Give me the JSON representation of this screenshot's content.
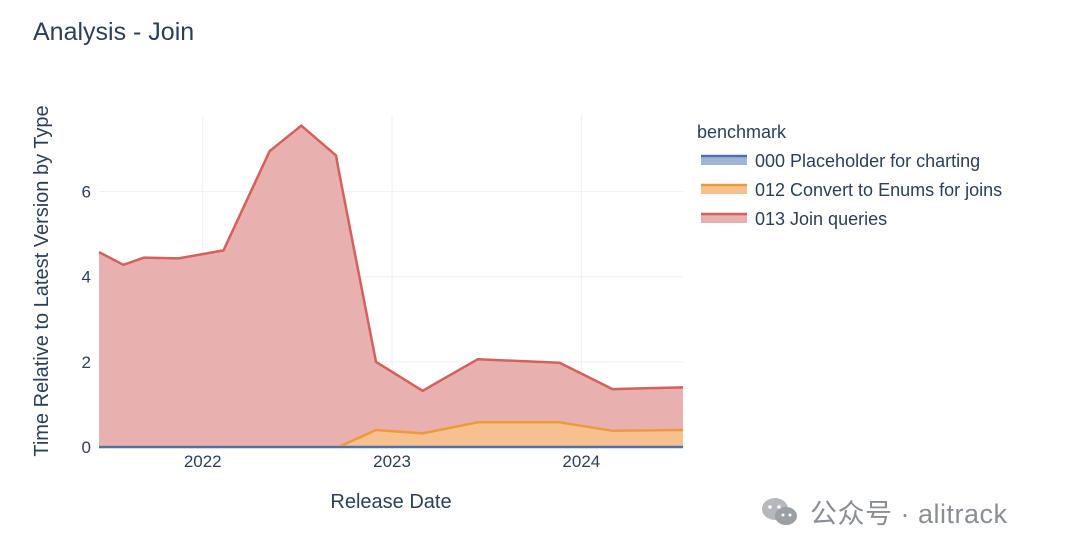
{
  "chart_data": {
    "type": "area",
    "title": "Analysis - Join",
    "xlabel": "Release Date",
    "ylabel": "Time Relative to Latest Version by Type",
    "legend_title": "benchmark",
    "legend_position": "right",
    "x_ticks": [
      "2022",
      "2023",
      "2024"
    ],
    "y_ticks": [
      0,
      2,
      4,
      6
    ],
    "xlim": [
      "2021-06-15",
      "2024-07-15"
    ],
    "ylim": [
      0,
      7.8
    ],
    "grid": true,
    "stacked": true,
    "series": [
      {
        "name": "000 Placeholder for charting",
        "color": "#4c72b0",
        "fill": "#9fb4d8",
        "points": [
          [
            "2021-06-15",
            0
          ],
          [
            "2024-07-15",
            0
          ]
        ]
      },
      {
        "name": "012 Convert to Enums for joins",
        "color": "#f0993b",
        "fill": "#f6c18f",
        "points": [
          [
            "2021-06-15",
            0
          ],
          [
            "2022-09-20",
            0
          ],
          [
            "2022-12-01",
            0.4
          ],
          [
            "2023-03-01",
            0.32
          ],
          [
            "2023-06-15",
            0.58
          ],
          [
            "2023-11-20",
            0.58
          ],
          [
            "2024-03-01",
            0.38
          ],
          [
            "2024-07-15",
            0.4
          ]
        ]
      },
      {
        "name": "013 Join queries",
        "color": "#d6605a",
        "fill": "#e8b0ae",
        "points": [
          [
            "2021-06-15",
            4.58
          ],
          [
            "2021-08-01",
            4.28
          ],
          [
            "2021-09-10",
            4.45
          ],
          [
            "2021-11-15",
            4.43
          ],
          [
            "2022-02-10",
            4.62
          ],
          [
            "2022-05-10",
            6.95
          ],
          [
            "2022-07-10",
            7.55
          ],
          [
            "2022-09-15",
            6.85
          ],
          [
            "2022-12-01",
            1.6
          ],
          [
            "2023-03-01",
            1.0
          ],
          [
            "2023-06-15",
            1.48
          ],
          [
            "2023-11-20",
            1.4
          ],
          [
            "2024-03-01",
            0.98
          ],
          [
            "2024-07-15",
            1.0
          ]
        ]
      }
    ]
  },
  "watermark": {
    "icon": "wechat-icon",
    "text": "公众号 · alitrack"
  }
}
